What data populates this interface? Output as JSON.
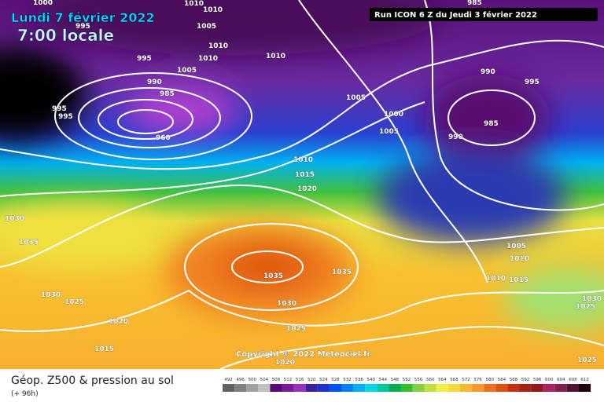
{
  "header": {
    "date": "Lundi 7 février 2022",
    "time": "7:00 locale",
    "run": "Run ICON 6 Z du Jeudi 3 février 2022"
  },
  "copyright": "Copyright © 2022 Meteociel.fr",
  "footer": {
    "title": "Géop. Z500 & pression au sol",
    "subtitle": "(+ 96h)"
  },
  "isobar_labels": [
    "1000",
    "1010",
    "1010",
    "995",
    "1005",
    "995",
    "1010",
    "1010",
    "1010",
    "1005",
    "990",
    "985",
    "995",
    "995",
    "960",
    "1005",
    "1000",
    "1005",
    "990",
    "995",
    "985",
    "990",
    "985",
    "1010",
    "1015",
    "1020",
    "1030",
    "1035",
    "1035",
    "1035",
    "1030",
    "1025",
    "1030",
    "1020",
    "1025",
    "1015",
    "1020",
    "1005",
    "1010",
    "1010",
    "1015",
    "1030",
    "1025",
    "1025"
  ],
  "scale": {
    "labels": [
      492,
      496,
      500,
      504,
      508,
      512,
      516,
      520,
      524,
      528,
      532,
      536,
      540,
      544,
      548,
      552,
      556,
      560,
      564,
      568,
      572,
      576,
      580,
      584,
      588,
      592,
      596,
      600,
      604,
      608,
      612
    ],
    "colors": [
      "#606060",
      "#808080",
      "#a0a0a0",
      "#c0c0c0",
      "#5a0a78",
      "#7a1a9a",
      "#9b30c0",
      "#3a1fa0",
      "#2030d0",
      "#0050ff",
      "#0080ff",
      "#00b0ff",
      "#00d8e8",
      "#00c8a0",
      "#00b050",
      "#30c030",
      "#80d040",
      "#c0e040",
      "#f0f040",
      "#f8d838",
      "#f8b830",
      "#f89828",
      "#f07020",
      "#e05010",
      "#c83010",
      "#a82010",
      "#901818",
      "#b02060",
      "#802050",
      "#501030",
      "#200010"
    ]
  }
}
